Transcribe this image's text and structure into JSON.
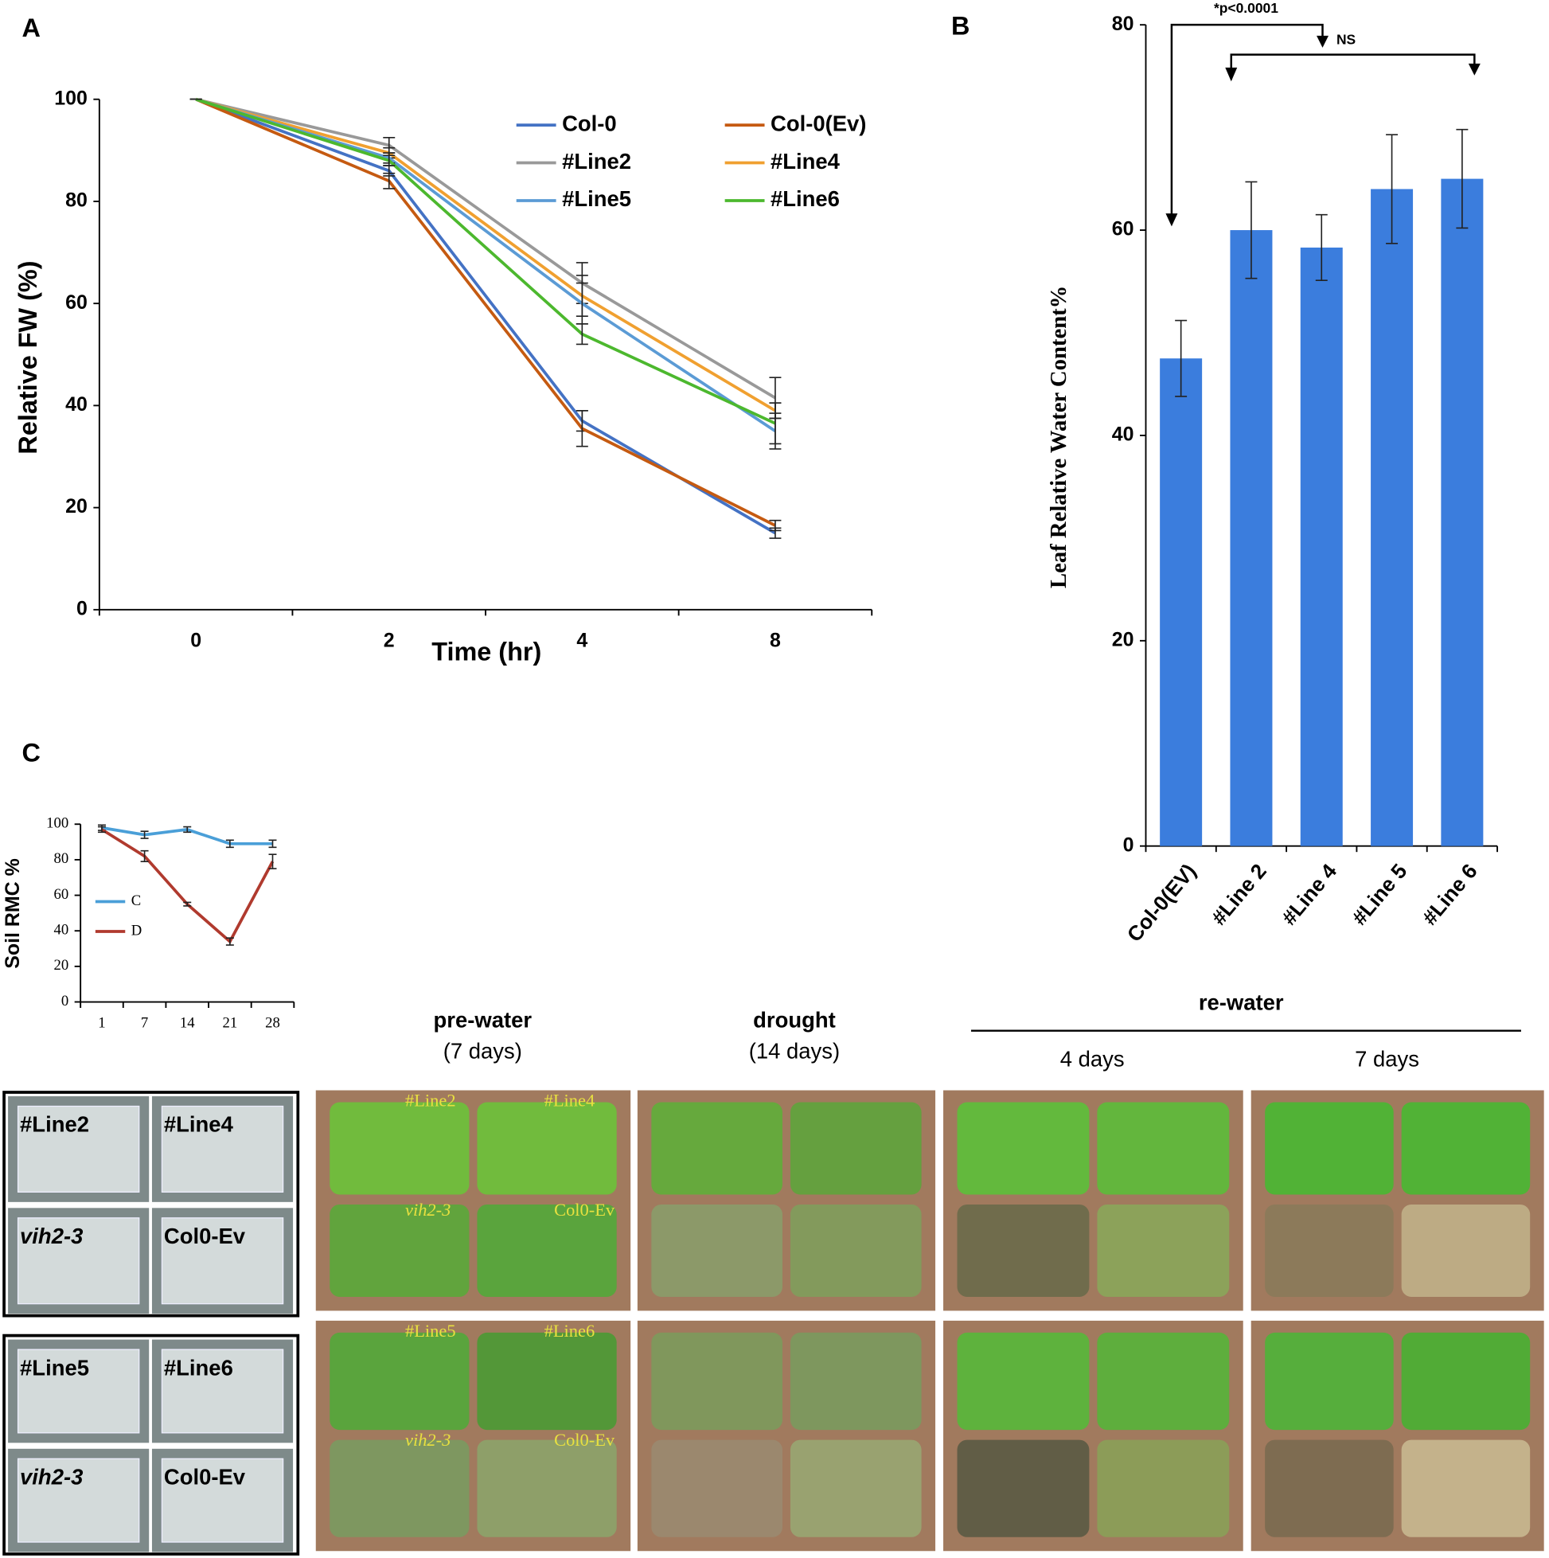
{
  "chart_data": [
    {
      "type": "line",
      "panel": "A",
      "ylabel": "Relative FW (%)",
      "xlabel": "Time (hr)",
      "categories": [
        "0",
        "2",
        "4",
        "8"
      ],
      "ylim": [
        0,
        100
      ],
      "yticks": [
        0,
        20,
        40,
        60,
        80,
        100
      ],
      "series": [
        {
          "name": "Col-0",
          "color": "#4472c4",
          "values": [
            100,
            86,
            37,
            15
          ],
          "errors": [
            0,
            1,
            2,
            1
          ]
        },
        {
          "name": "Col-0(Ev)",
          "color": "#c55a11",
          "values": [
            100,
            84,
            35.5,
            16.5
          ],
          "errors": [
            0,
            1.5,
            3.5,
            1
          ]
        },
        {
          "name": "#Line2",
          "color": "#999999",
          "values": [
            100,
            91,
            64,
            41.5
          ],
          "errors": [
            0,
            1.5,
            4,
            4
          ]
        },
        {
          "name": "#Line4",
          "color": "#f0a030",
          "values": [
            100,
            89.5,
            61.5,
            39
          ],
          "errors": [
            0,
            1,
            4,
            1.5
          ]
        },
        {
          "name": "#Line5",
          "color": "#5b9bd5",
          "values": [
            100,
            88.5,
            60,
            35
          ],
          "errors": [
            0,
            1,
            4,
            3.5
          ]
        },
        {
          "name": "#Line6",
          "color": "#4cb82e",
          "values": [
            100,
            88,
            54,
            36.5
          ],
          "errors": [
            0,
            1,
            2,
            4
          ]
        }
      ]
    },
    {
      "type": "bar",
      "panel": "B",
      "ylabel": "Leaf Relative Water Content%",
      "categories": [
        "Col-0(EV)",
        "#Line 2",
        "#Line 4",
        "#Line 5",
        "#Line 6"
      ],
      "values": [
        47.5,
        60,
        58.3,
        64,
        65
      ],
      "errors": [
        3.7,
        4.7,
        3.2,
        5.3,
        4.8
      ],
      "color": "#3b7ddd",
      "ylim": [
        0,
        80
      ],
      "yticks": [
        0,
        20,
        40,
        60,
        80
      ],
      "annotations": [
        "*p<0.0001",
        "NS"
      ]
    },
    {
      "type": "line",
      "panel": "C",
      "ylabel": "Soil RMC %",
      "categories": [
        "1",
        "7",
        "14",
        "21",
        "28"
      ],
      "ylim": [
        0,
        100
      ],
      "yticks": [
        0,
        20,
        40,
        60,
        80,
        100
      ],
      "series": [
        {
          "name": "C",
          "color": "#4a9fd8",
          "values": [
            98,
            94,
            97,
            89,
            89
          ],
          "errors": [
            1.5,
            2,
            1.5,
            2,
            2
          ]
        },
        {
          "name": "D",
          "color": "#b03a2e",
          "values": [
            97,
            82,
            55,
            34,
            79
          ],
          "errors": [
            1.5,
            3,
            1,
            2,
            4
          ]
        }
      ]
    }
  ],
  "photo_panel": {
    "headers": [
      "pre-water",
      "(7 days)",
      "drought",
      "(14 days)",
      "re-water",
      "4 days",
      "7 days"
    ],
    "keys": [
      [
        "#Line2",
        "#Line4",
        "vih2-3",
        "Col0-Ev"
      ],
      [
        "#Line5",
        "#Line6",
        "vih2-3",
        "Col0-Ev"
      ]
    ],
    "photo_labels": [
      [
        "#Line2",
        "#Line4",
        "vih2-3",
        "Col0-Ev"
      ],
      [
        "#Line5",
        "#Line6",
        "vih2-3",
        "Col0-Ev"
      ]
    ]
  }
}
